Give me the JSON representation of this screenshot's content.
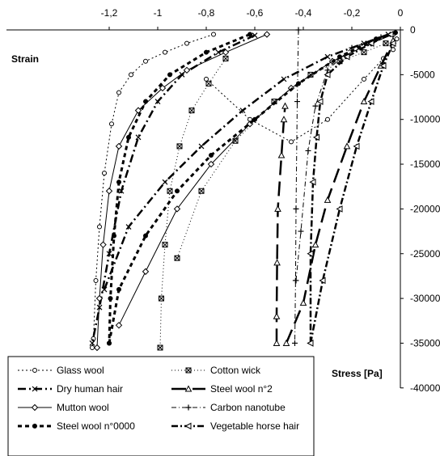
{
  "chart_data": {
    "type": "line",
    "xlabel": "Stress [Pa]",
    "ylabel": "Strain",
    "xlim": [
      -1.3,
      0
    ],
    "ylim": [
      -40000,
      0
    ],
    "x_ticks": [
      -1.2,
      -1,
      -0.8,
      -0.6,
      -0.4,
      -0.2,
      0
    ],
    "x_tick_labels": [
      "-1,2",
      "-1",
      "-0,8",
      "-0,6",
      "-0,4",
      "-0,2",
      "0"
    ],
    "y_ticks": [
      0,
      -5000,
      -10000,
      -15000,
      -20000,
      -25000,
      -30000,
      -35000,
      -40000
    ],
    "y_tick_labels": [
      "0",
      "-5000",
      "-10000",
      "-15000",
      "-20000",
      "-25000",
      "-30000",
      "-35000",
      "-40000"
    ],
    "grid": false,
    "legend_position": "bottom-left",
    "series": [
      {
        "name": "Glass wool",
        "color": "#000000",
        "dash": "2,3",
        "width": 1,
        "marker": "circle",
        "points": [
          [
            -0.77,
            -500
          ],
          [
            -0.88,
            -1500
          ],
          [
            -0.97,
            -2500
          ],
          [
            -1.05,
            -3500
          ],
          [
            -1.11,
            -5000
          ],
          [
            -1.16,
            -7000
          ],
          [
            -1.19,
            -10500
          ],
          [
            -1.22,
            -16000
          ],
          [
            -1.24,
            -22000
          ],
          [
            -1.255,
            -28000
          ],
          [
            -1.265,
            -34500
          ],
          [
            -1.27,
            -35500
          ]
        ],
        "tail": [
          [
            -0.8,
            -5500
          ],
          [
            -0.62,
            -10000
          ],
          [
            -0.45,
            -12500
          ],
          [
            -0.3,
            -10000
          ],
          [
            -0.15,
            -5500
          ],
          [
            -0.07,
            -3200
          ],
          [
            -0.03,
            -2200
          ],
          [
            -0.015,
            -1000
          ]
        ]
      },
      {
        "name": "Cotton wick",
        "color": "#000000",
        "dash": "1,3",
        "width": 1,
        "marker": "boxx",
        "points": [
          [
            -0.72,
            -3200
          ],
          [
            -0.79,
            -6000
          ],
          [
            -0.86,
            -9000
          ],
          [
            -0.91,
            -13000
          ],
          [
            -0.95,
            -18000
          ],
          [
            -0.97,
            -24000
          ],
          [
            -0.985,
            -30000
          ],
          [
            -0.99,
            -35500
          ]
        ],
        "tail": [
          [
            -0.92,
            -25500
          ],
          [
            -0.82,
            -18000
          ],
          [
            -0.68,
            -12400
          ],
          [
            -0.52,
            -8000
          ],
          [
            -0.37,
            -5000
          ],
          [
            -0.25,
            -3500
          ],
          [
            -0.15,
            -2500
          ],
          [
            -0.06,
            -1500
          ]
        ]
      },
      {
        "name": "Dry human hair",
        "color": "#000000",
        "dash": "10,4,2,4",
        "width": 2.5,
        "marker": "x",
        "points": [
          [
            -0.6,
            -600
          ],
          [
            -0.75,
            -2500
          ],
          [
            -0.9,
            -5000
          ],
          [
            -1.0,
            -8000
          ],
          [
            -1.08,
            -12000
          ],
          [
            -1.15,
            -18000
          ],
          [
            -1.2,
            -25000
          ],
          [
            -1.24,
            -31000
          ],
          [
            -1.27,
            -35000
          ]
        ],
        "tail": [
          [
            -1.22,
            -29000
          ],
          [
            -1.12,
            -22000
          ],
          [
            -0.97,
            -17000
          ],
          [
            -0.82,
            -13000
          ],
          [
            -0.65,
            -9000
          ],
          [
            -0.48,
            -5500
          ],
          [
            -0.3,
            -3000
          ],
          [
            -0.15,
            -1500
          ],
          [
            -0.05,
            -500
          ]
        ]
      },
      {
        "name": "Steel wool n°2",
        "color": "#000000",
        "dash": "18,8",
        "width": 2.5,
        "marker": "triangle",
        "points": [
          [
            -0.51,
            -35000
          ],
          [
            -0.51,
            -32000
          ],
          [
            -0.508,
            -26000
          ],
          [
            -0.505,
            -20000
          ],
          [
            -0.49,
            -14000
          ],
          [
            -0.48,
            -10000
          ],
          [
            -0.475,
            -8500
          ]
        ],
        "tail": [
          [
            -0.47,
            -35000
          ],
          [
            -0.4,
            -30500
          ],
          [
            -0.35,
            -24000
          ],
          [
            -0.3,
            -19000
          ],
          [
            -0.22,
            -13000
          ],
          [
            -0.15,
            -8000
          ],
          [
            -0.08,
            -4000
          ],
          [
            -0.03,
            -1200
          ]
        ]
      },
      {
        "name": "Mutton wool",
        "color": "#000000",
        "dash": "",
        "width": 1,
        "marker": "diamond",
        "points": [
          [
            -0.55,
            -500
          ],
          [
            -0.72,
            -2500
          ],
          [
            -0.88,
            -4500
          ],
          [
            -0.98,
            -6500
          ],
          [
            -1.08,
            -9000
          ],
          [
            -1.16,
            -13000
          ],
          [
            -1.2,
            -18000
          ],
          [
            -1.225,
            -24000
          ],
          [
            -1.24,
            -30000
          ],
          [
            -1.25,
            -35500
          ]
        ],
        "tail": [
          [
            -1.16,
            -33000
          ],
          [
            -1.05,
            -27000
          ],
          [
            -0.92,
            -20000
          ],
          [
            -0.78,
            -15000
          ],
          [
            -0.62,
            -10500
          ],
          [
            -0.45,
            -6500
          ],
          [
            -0.28,
            -3500
          ],
          [
            -0.12,
            -1500
          ],
          [
            -0.03,
            -500
          ]
        ]
      },
      {
        "name": "Carbon nanotube",
        "color": "#000000",
        "dash": "6,3,1,3",
        "width": 1,
        "marker": "plus",
        "points": [
          [
            -0.42,
            0
          ],
          [
            -0.425,
            -8000
          ],
          [
            -0.43,
            -20000
          ],
          [
            -0.432,
            -28000
          ],
          [
            -0.435,
            -35000
          ]
        ],
        "tail": [
          [
            -0.43,
            -28000
          ],
          [
            -0.41,
            -22500
          ],
          [
            -0.38,
            -13500
          ],
          [
            -0.35,
            -8500
          ],
          [
            -0.3,
            -4500
          ],
          [
            -0.2,
            -2000
          ],
          [
            -0.08,
            -800
          ]
        ]
      },
      {
        "name": "Steel wool n°0000",
        "color": "#000000",
        "dash": "5,4",
        "width": 3,
        "marker": "dot",
        "points": [
          [
            -0.62,
            -500
          ],
          [
            -0.8,
            -2500
          ],
          [
            -0.95,
            -5000
          ],
          [
            -1.05,
            -8000
          ],
          [
            -1.12,
            -12000
          ],
          [
            -1.16,
            -17000
          ],
          [
            -1.18,
            -23000
          ],
          [
            -1.195,
            -30000
          ],
          [
            -1.2,
            -35000
          ]
        ],
        "tail": [
          [
            -1.2,
            -35000
          ],
          [
            -1.16,
            -29000
          ],
          [
            -1.05,
            -23000
          ],
          [
            -0.92,
            -18000
          ],
          [
            -0.78,
            -14000
          ],
          [
            -0.6,
            -10000
          ],
          [
            -0.42,
            -6000
          ],
          [
            -0.25,
            -3000
          ],
          [
            -0.1,
            -1000
          ],
          [
            -0.02,
            -300
          ]
        ]
      },
      {
        "name": "Vegetable horse hair",
        "color": "#000000",
        "dash": "8,3,2,3",
        "width": 2.5,
        "marker": "ltriangle",
        "points": [
          [
            -0.37,
            -35000
          ],
          [
            -0.37,
            -25000
          ],
          [
            -0.36,
            -17000
          ],
          [
            -0.345,
            -12000
          ],
          [
            -0.33,
            -8000
          ],
          [
            -0.3,
            -5000
          ],
          [
            -0.22,
            -3000
          ],
          [
            -0.12,
            -1500
          ],
          [
            -0.04,
            -500
          ]
        ],
        "tail": [
          [
            -0.37,
            -35000
          ],
          [
            -0.32,
            -28000
          ],
          [
            -0.25,
            -20000
          ],
          [
            -0.18,
            -13000
          ],
          [
            -0.12,
            -8000
          ],
          [
            -0.07,
            -4000
          ],
          [
            -0.03,
            -1500
          ]
        ]
      }
    ]
  }
}
